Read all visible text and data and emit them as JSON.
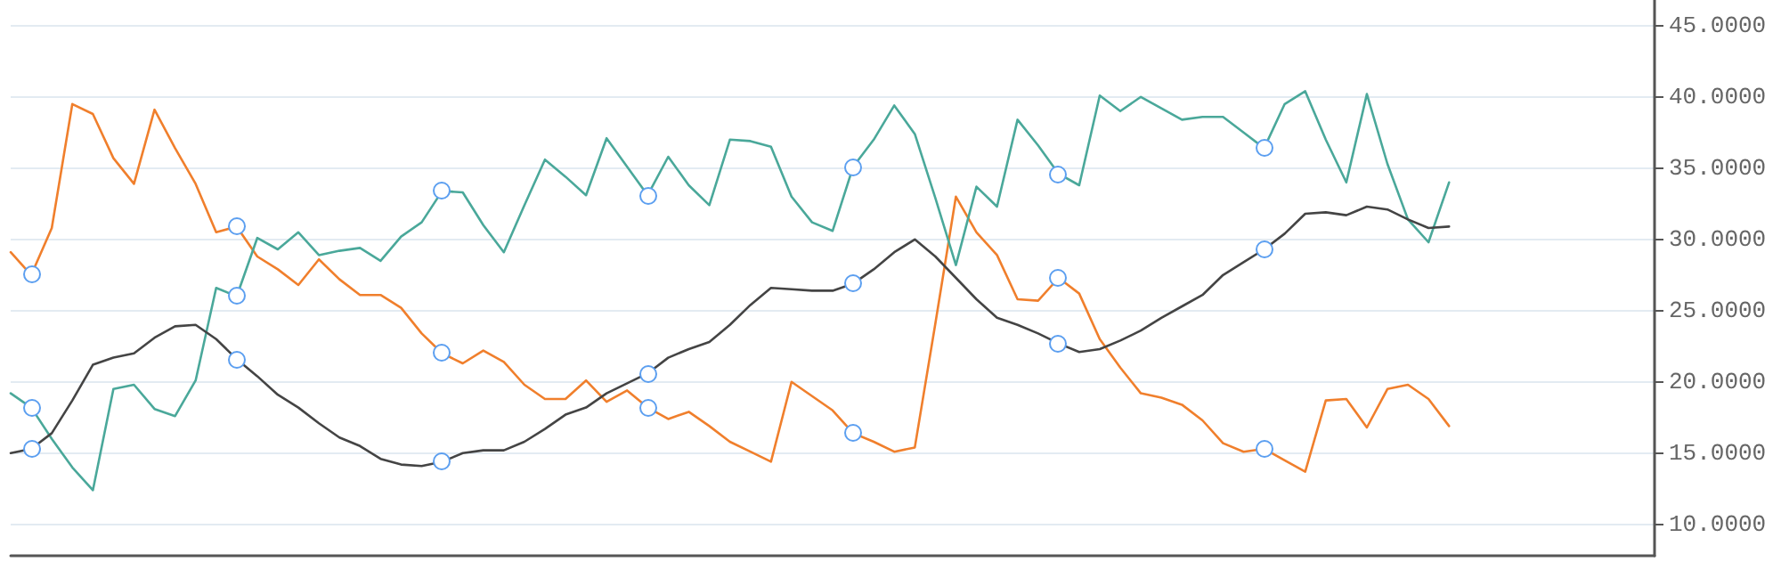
{
  "chart_data": {
    "type": "line",
    "categories": [
      null,
      null,
      null,
      null,
      null,
      null,
      null,
      null,
      null,
      null,
      null,
      null,
      null,
      null,
      null,
      null,
      null,
      null,
      null,
      null,
      null,
      null,
      null,
      null,
      null,
      null,
      null,
      null,
      null,
      null,
      null,
      null,
      null,
      null,
      null,
      null,
      null,
      null,
      null,
      null,
      null,
      null,
      null,
      null,
      null,
      null,
      null,
      null,
      null,
      null,
      null,
      null,
      null,
      null,
      null,
      null,
      null,
      null,
      null,
      null,
      null,
      null,
      null,
      null,
      null,
      null,
      null,
      null,
      null,
      null,
      null,
      null,
      null,
      null,
      null,
      null,
      null,
      null,
      null,
      null,
      null
    ],
    "series": [
      {
        "color": "#f07f2c",
        "values": [
          29.1,
          27.5,
          30.8,
          39.5,
          38.8,
          35.7,
          33.9,
          39.1,
          36.4,
          33.9,
          30.5,
          30.9,
          28.8,
          27.9,
          26.8,
          28.6,
          27.2,
          26.1,
          26.1,
          25.2,
          23.4,
          22.0,
          21.3,
          22.2,
          21.4,
          19.8,
          18.8,
          18.8,
          20.1,
          18.6,
          19.4,
          18.2,
          17.4,
          17.9,
          16.9,
          15.8,
          15.1,
          14.4,
          20.0,
          19.0,
          18.0,
          16.4,
          15.8,
          15.1,
          15.4,
          24.1,
          33.0,
          30.5,
          28.9,
          25.8,
          25.7,
          27.3,
          26.2,
          23.0,
          21.0,
          19.2,
          18.9,
          18.4,
          17.3,
          15.7,
          15.1,
          15.3,
          14.5,
          13.7,
          18.7,
          18.8,
          16.8,
          19.5,
          19.8,
          18.8,
          16.9,
          null,
          null,
          null,
          null,
          null,
          null,
          null,
          null,
          null,
          null
        ]
      },
      {
        "color": "#4aa89a",
        "values": [
          19.2,
          18.2,
          16.0,
          14.0,
          12.4,
          19.5,
          19.8,
          18.1,
          17.6,
          20.1,
          26.6,
          26.0,
          30.1,
          29.3,
          30.5,
          28.9,
          29.2,
          29.4,
          28.5,
          30.2,
          31.2,
          33.4,
          33.3,
          31.0,
          29.1,
          32.4,
          35.6,
          34.4,
          33.1,
          37.1,
          35.1,
          33.1,
          35.8,
          33.8,
          32.4,
          37.0,
          36.9,
          36.5,
          33.0,
          31.2,
          30.6,
          35.1,
          37.0,
          39.4,
          37.4,
          32.9,
          28.2,
          33.7,
          32.3,
          38.4,
          36.6,
          34.6,
          33.8,
          40.1,
          39.0,
          40.0,
          39.2,
          38.4,
          38.6,
          38.6,
          37.5,
          36.4,
          39.5,
          40.4,
          37.0,
          34.0,
          40.2,
          35.3,
          31.4,
          29.8,
          34.0,
          null,
          null,
          null,
          null,
          null,
          null,
          null,
          null,
          null,
          null
        ]
      },
      {
        "color": "#444444",
        "values": [
          15.0,
          15.3,
          16.4,
          18.7,
          21.2,
          21.7,
          22.0,
          23.1,
          23.9,
          24.0,
          23.0,
          21.6,
          20.4,
          19.1,
          18.2,
          17.1,
          16.1,
          15.5,
          14.6,
          14.2,
          14.1,
          14.4,
          15.0,
          15.2,
          15.2,
          15.8,
          16.7,
          17.7,
          18.2,
          19.2,
          19.9,
          20.6,
          21.7,
          22.3,
          22.8,
          24.0,
          25.4,
          26.6,
          26.5,
          26.4,
          26.4,
          26.9,
          27.9,
          29.1,
          30.0,
          28.8,
          27.3,
          25.8,
          24.5,
          24.0,
          23.4,
          22.7,
          22.1,
          22.3,
          22.9,
          23.6,
          24.5,
          25.3,
          26.1,
          27.5,
          28.4,
          29.3,
          30.4,
          31.8,
          31.9,
          31.7,
          32.3,
          32.1,
          31.4,
          30.8,
          30.9,
          null,
          null,
          null,
          null,
          null,
          null,
          null,
          null,
          null,
          null
        ]
      }
    ],
    "ylim": [
      7.8,
      46.8
    ],
    "yticks": [
      {
        "value": 10,
        "label": "10.0000"
      },
      {
        "value": 15,
        "label": "15.0000"
      },
      {
        "value": 20,
        "label": "20.0000"
      },
      {
        "value": 25,
        "label": "25.0000"
      },
      {
        "value": 30,
        "label": "30.0000"
      },
      {
        "value": 35,
        "label": "35.0000"
      },
      {
        "value": 40,
        "label": "40.0000"
      },
      {
        "value": 45,
        "label": "45.0000"
      }
    ],
    "grid": "y"
  }
}
